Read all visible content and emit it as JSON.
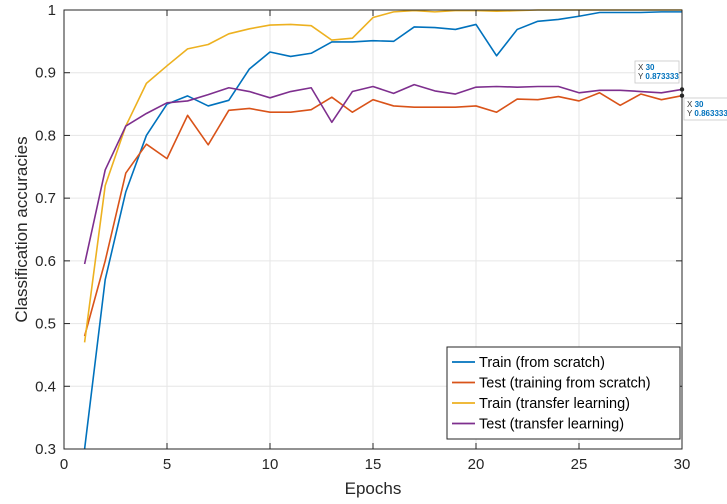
{
  "chart_data": {
    "type": "line",
    "title": "",
    "xlabel": "Epochs",
    "ylabel": "Classification accuracies",
    "xlim": [
      0,
      30
    ],
    "ylim": [
      0.3,
      1
    ],
    "xticks": [
      0,
      5,
      10,
      15,
      20,
      25,
      30
    ],
    "yticks": [
      0.3,
      0.4,
      0.5,
      0.6,
      0.7,
      0.8,
      0.9,
      1
    ],
    "grid": true,
    "legend_position": "bottom-right",
    "x": [
      1,
      2,
      3,
      4,
      5,
      6,
      7,
      8,
      9,
      10,
      11,
      12,
      13,
      14,
      15,
      16,
      17,
      18,
      19,
      20,
      21,
      22,
      23,
      24,
      25,
      26,
      27,
      28,
      29,
      30
    ],
    "series": [
      {
        "name": "Train (from scratch)",
        "color": "#0072BD",
        "values": [
          0.3,
          0.57,
          0.71,
          0.8,
          0.85,
          0.863,
          0.847,
          0.856,
          0.906,
          0.933,
          0.926,
          0.931,
          0.949,
          0.949,
          0.951,
          0.95,
          0.973,
          0.972,
          0.969,
          0.977,
          0.927,
          0.969,
          0.982,
          0.985,
          0.99,
          0.996,
          0.996,
          0.996,
          0.997,
          0.997
        ]
      },
      {
        "name": "Test (training from scratch)",
        "color": "#D95319",
        "values": [
          0.48,
          0.6,
          0.74,
          0.786,
          0.763,
          0.832,
          0.785,
          0.84,
          0.843,
          0.837,
          0.837,
          0.841,
          0.861,
          0.837,
          0.857,
          0.847,
          0.845,
          0.845,
          0.845,
          0.847,
          0.837,
          0.858,
          0.857,
          0.862,
          0.855,
          0.868,
          0.848,
          0.866,
          0.857,
          0.863333
        ]
      },
      {
        "name": "Train (transfer learning)",
        "color": "#EDB120",
        "values": [
          0.47,
          0.72,
          0.815,
          0.883,
          0.911,
          0.938,
          0.945,
          0.962,
          0.97,
          0.976,
          0.977,
          0.975,
          0.952,
          0.955,
          0.988,
          0.997,
          0.999,
          0.997,
          0.999,
          0.999,
          0.998,
          0.999,
          1.0,
          1.0,
          1.0,
          1.0,
          1.0,
          1.0,
          1.0,
          1.0
        ]
      },
      {
        "name": "Test (transfer learning)",
        "color": "#7E2F8E",
        "values": [
          0.595,
          0.745,
          0.815,
          0.835,
          0.852,
          0.855,
          0.865,
          0.876,
          0.87,
          0.86,
          0.87,
          0.876,
          0.821,
          0.87,
          0.878,
          0.867,
          0.881,
          0.871,
          0.866,
          0.877,
          0.878,
          0.877,
          0.878,
          0.878,
          0.868,
          0.872,
          0.872,
          0.87,
          0.868,
          0.873333
        ]
      }
    ],
    "datatips": [
      {
        "series": 3,
        "x_label": "X",
        "x_value": "30",
        "y_label": "Y",
        "y_value": "0.873333"
      },
      {
        "series": 1,
        "x_label": "X",
        "x_value": "30",
        "y_label": "Y",
        "y_value": "0.863333"
      }
    ]
  }
}
